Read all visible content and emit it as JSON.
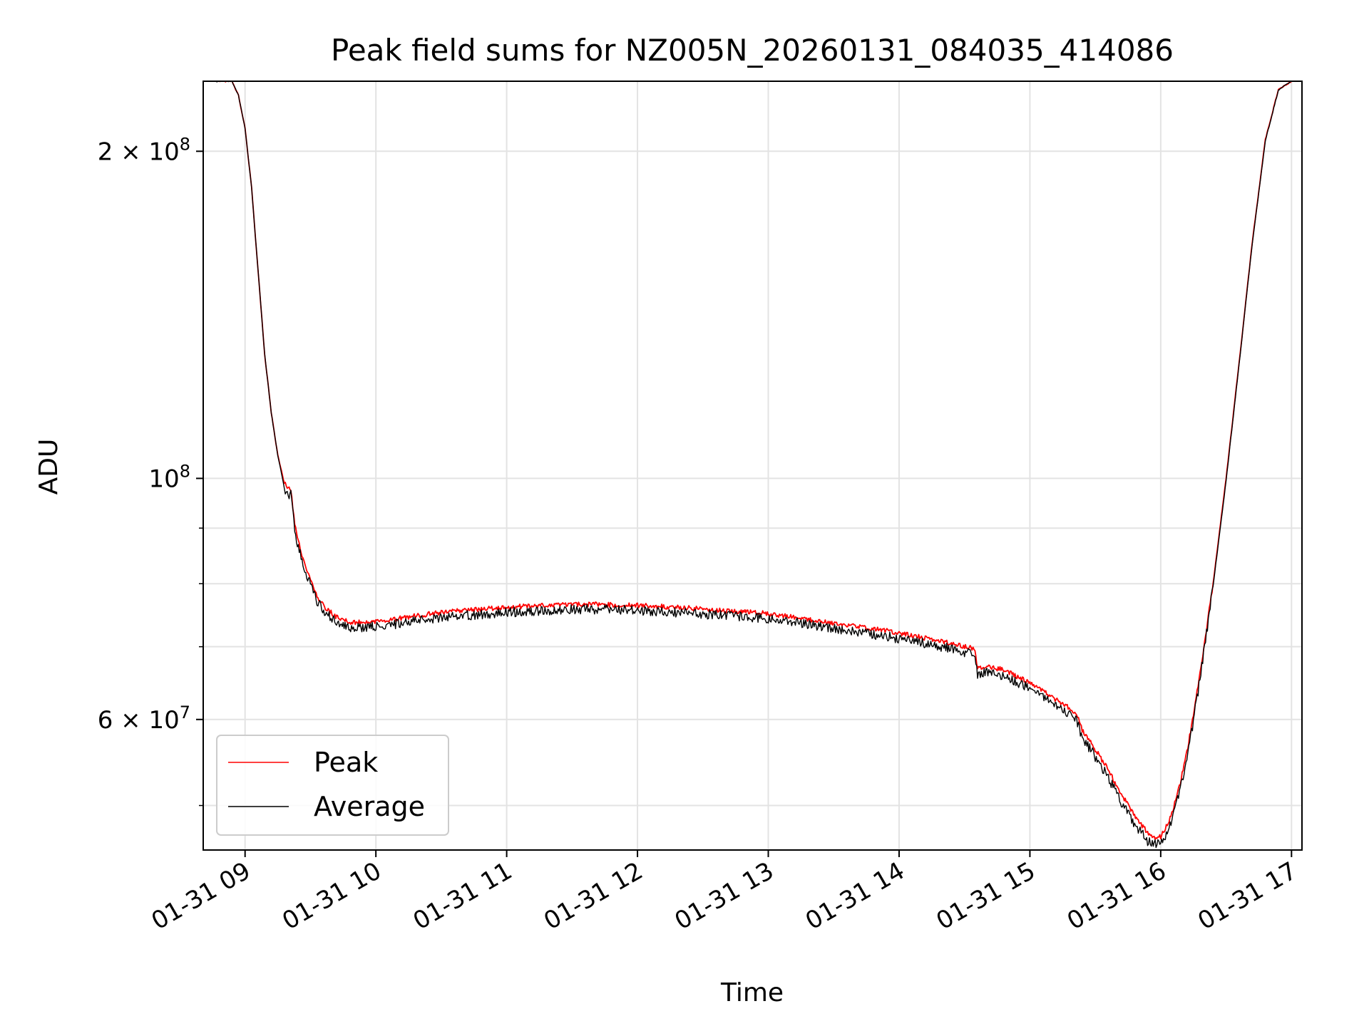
{
  "chart_data": {
    "type": "line",
    "title": "Peak field sums for NZ005N_20260131_084035_414086",
    "xlabel": "Time",
    "ylabel": "ADU",
    "yscale": "log",
    "grid": true,
    "legend_position": "lower-left",
    "xlim": [
      8.68,
      17.08
    ],
    "ylim": [
      45500000,
      232000000
    ],
    "x_ticks": [
      {
        "value": 9,
        "label": "01-31 09"
      },
      {
        "value": 10,
        "label": "01-31 10"
      },
      {
        "value": 11,
        "label": "01-31 11"
      },
      {
        "value": 12,
        "label": "01-31 12"
      },
      {
        "value": 13,
        "label": "01-31 13"
      },
      {
        "value": 14,
        "label": "01-31 14"
      },
      {
        "value": 15,
        "label": "01-31 15"
      },
      {
        "value": 16,
        "label": "01-31 16"
      },
      {
        "value": 17,
        "label": "01-31 17"
      }
    ],
    "y_major_ticks": [
      {
        "value": 60000000,
        "mantissa": "6",
        "exponent": "7"
      },
      {
        "value": 100000000,
        "mantissa": "",
        "exponent": "8"
      },
      {
        "value": 200000000,
        "mantissa": "2",
        "exponent": "8"
      }
    ],
    "y_tick_labels": [
      "6 × 10^7",
      "10^8",
      "2 × 10^8"
    ],
    "y_minor_ticks": [
      50000000,
      70000000,
      80000000,
      90000000
    ],
    "series": [
      {
        "name": "Peak",
        "color": "#ff0000",
        "x": [
          8.78,
          8.9,
          8.95,
          9.0,
          9.05,
          9.1,
          9.15,
          9.2,
          9.25,
          9.3,
          9.33,
          9.35,
          9.38,
          9.4,
          9.45,
          9.5,
          9.55,
          9.6,
          9.7,
          9.8,
          9.9,
          10.0,
          10.2,
          10.5,
          10.8,
          11.0,
          11.3,
          11.6,
          12.0,
          12.3,
          12.6,
          13.0,
          13.3,
          13.6,
          13.9,
          14.2,
          14.4,
          14.55,
          14.58,
          14.6,
          14.65,
          14.8,
          15.0,
          15.2,
          15.35,
          15.4,
          15.5,
          15.6,
          15.7,
          15.8,
          15.9,
          15.95,
          16.0,
          16.05,
          16.1,
          16.15,
          16.2,
          16.25,
          16.3,
          16.4,
          16.5,
          16.6,
          16.7,
          16.8,
          16.9,
          17.0
        ],
        "values": [
          232000000,
          232000000,
          225000000,
          210000000,
          185000000,
          155000000,
          130000000,
          115000000,
          105000000,
          99000000,
          98000000,
          97500000,
          91000000,
          88000000,
          84000000,
          80500000,
          78000000,
          76300000,
          74500000,
          73700000,
          73700000,
          73900000,
          74400000,
          75300000,
          75800000,
          76100000,
          76400000,
          76600000,
          76400000,
          76100000,
          75700000,
          75100000,
          74200000,
          73300000,
          72400000,
          71300000,
          70500000,
          69800000,
          69500000,
          66800000,
          67100000,
          66700000,
          64800000,
          62600000,
          60900000,
          58700000,
          56300000,
          53900000,
          51200000,
          48900000,
          47200000,
          46700000,
          46800000,
          48000000,
          49800000,
          52500000,
          56000000,
          60500000,
          66000000,
          80000000,
          100000000,
          128000000,
          165000000,
          205000000,
          228000000,
          232000000
        ]
      },
      {
        "name": "Average",
        "color": "#000000",
        "x": [
          8.78,
          8.9,
          8.95,
          9.0,
          9.05,
          9.1,
          9.15,
          9.2,
          9.25,
          9.3,
          9.33,
          9.35,
          9.38,
          9.4,
          9.45,
          9.5,
          9.55,
          9.6,
          9.7,
          9.8,
          9.9,
          10.0,
          10.2,
          10.5,
          10.8,
          11.0,
          11.3,
          11.6,
          12.0,
          12.3,
          12.6,
          13.0,
          13.3,
          13.6,
          13.9,
          14.2,
          14.4,
          14.55,
          14.58,
          14.6,
          14.65,
          14.8,
          15.0,
          15.2,
          15.35,
          15.4,
          15.5,
          15.6,
          15.7,
          15.8,
          15.9,
          15.95,
          16.0,
          16.05,
          16.1,
          16.15,
          16.2,
          16.25,
          16.3,
          16.4,
          16.5,
          16.6,
          16.7,
          16.8,
          16.9,
          17.0
        ],
        "values": [
          232000000,
          232000000,
          225000000,
          210000000,
          185000000,
          155000000,
          130000000,
          115000000,
          105000000,
          98000000,
          96000000,
          97000000,
          90000000,
          87200000,
          83200000,
          79700000,
          77200000,
          75500000,
          73700000,
          72900000,
          72900000,
          73100000,
          73600000,
          74500000,
          75000000,
          75300000,
          75600000,
          75800000,
          75600000,
          75300000,
          74900000,
          74300000,
          73400000,
          72500000,
          71600000,
          70500000,
          69700000,
          69000000,
          68700000,
          66000000,
          66300000,
          65900000,
          64000000,
          61800000,
          60100000,
          57800000,
          55400000,
          53000000,
          50300000,
          48000000,
          46400000,
          46000000,
          46100000,
          47300000,
          49100000,
          51800000,
          55300000,
          59800000,
          65300000,
          79500000,
          99500000,
          127500000,
          164500000,
          204500000,
          227800000,
          232000000
        ]
      }
    ]
  }
}
